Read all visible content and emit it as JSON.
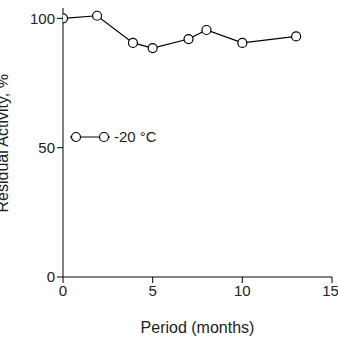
{
  "chart_data": {
    "type": "line",
    "x_label": "Period (months)",
    "y_label": "Residual Activity, %",
    "xlim": [
      0,
      15
    ],
    "xticks": [
      0,
      5,
      10,
      15
    ],
    "ylim": [
      0,
      104
    ],
    "yticks": [
      0,
      50,
      100
    ],
    "series": [
      {
        "name": "-20 °C",
        "color": "#000000",
        "marker": "circle",
        "x": [
          0,
          1.9,
          3.9,
          5,
          7,
          8,
          10,
          13
        ],
        "values": [
          100,
          101,
          90.5,
          88.5,
          92,
          95.5,
          90.5,
          93
        ]
      }
    ],
    "legend": "left"
  }
}
